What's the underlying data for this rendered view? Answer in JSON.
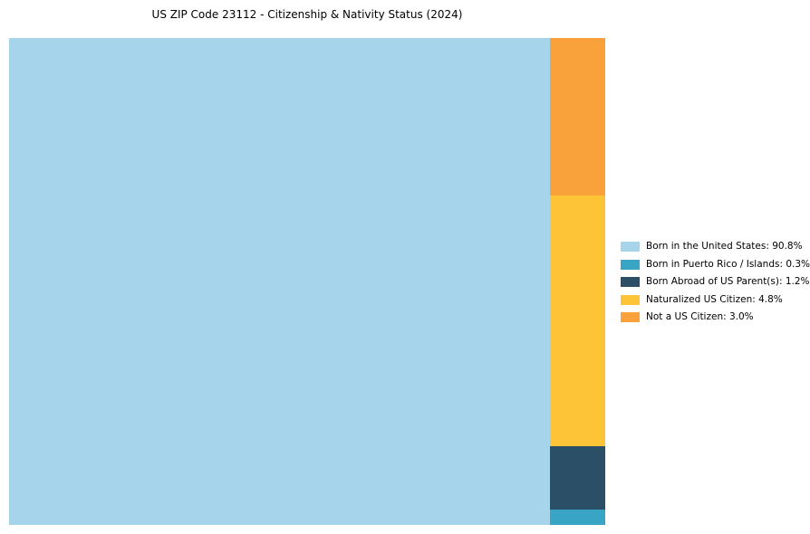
{
  "chart_data": {
    "type": "treemap",
    "title": "US ZIP Code 23112 - Citizenship & Nativity Status (2024)",
    "legend_position": "right-center",
    "background_color": "#ffffff",
    "slices": [
      {
        "id": "born-in-us",
        "name": "Born in the United States",
        "value": 90.8,
        "label": "Born in the United States: 90.8%",
        "color": "#A6D4EA"
      },
      {
        "id": "born-in-puerto-rico-islands",
        "name": "Born in Puerto Rico / Islands",
        "value": 0.3,
        "label": "Born in Puerto Rico / Islands: 0.3%",
        "color": "#39A5C5"
      },
      {
        "id": "born-abroad-us-parents",
        "name": "Born Abroad of US Parent(s)",
        "value": 1.2,
        "label": "Born Abroad of US Parent(s): 1.2%",
        "color": "#2A4F66"
      },
      {
        "id": "naturalized-us-citizen",
        "name": "Naturalized US Citizen",
        "value": 4.8,
        "label": "Naturalized US Citizen: 4.8%",
        "color": "#FDC437"
      },
      {
        "id": "not-a-us-citizen",
        "name": "Not a US Citizen",
        "value": 3.0,
        "label": "Not a US Citizen: 3.0%",
        "color": "#F9A13B"
      }
    ],
    "layout_note": "Largest slice fills left block at full height; remaining slices are stacked in the right column from top to bottom in reverse legend order"
  }
}
